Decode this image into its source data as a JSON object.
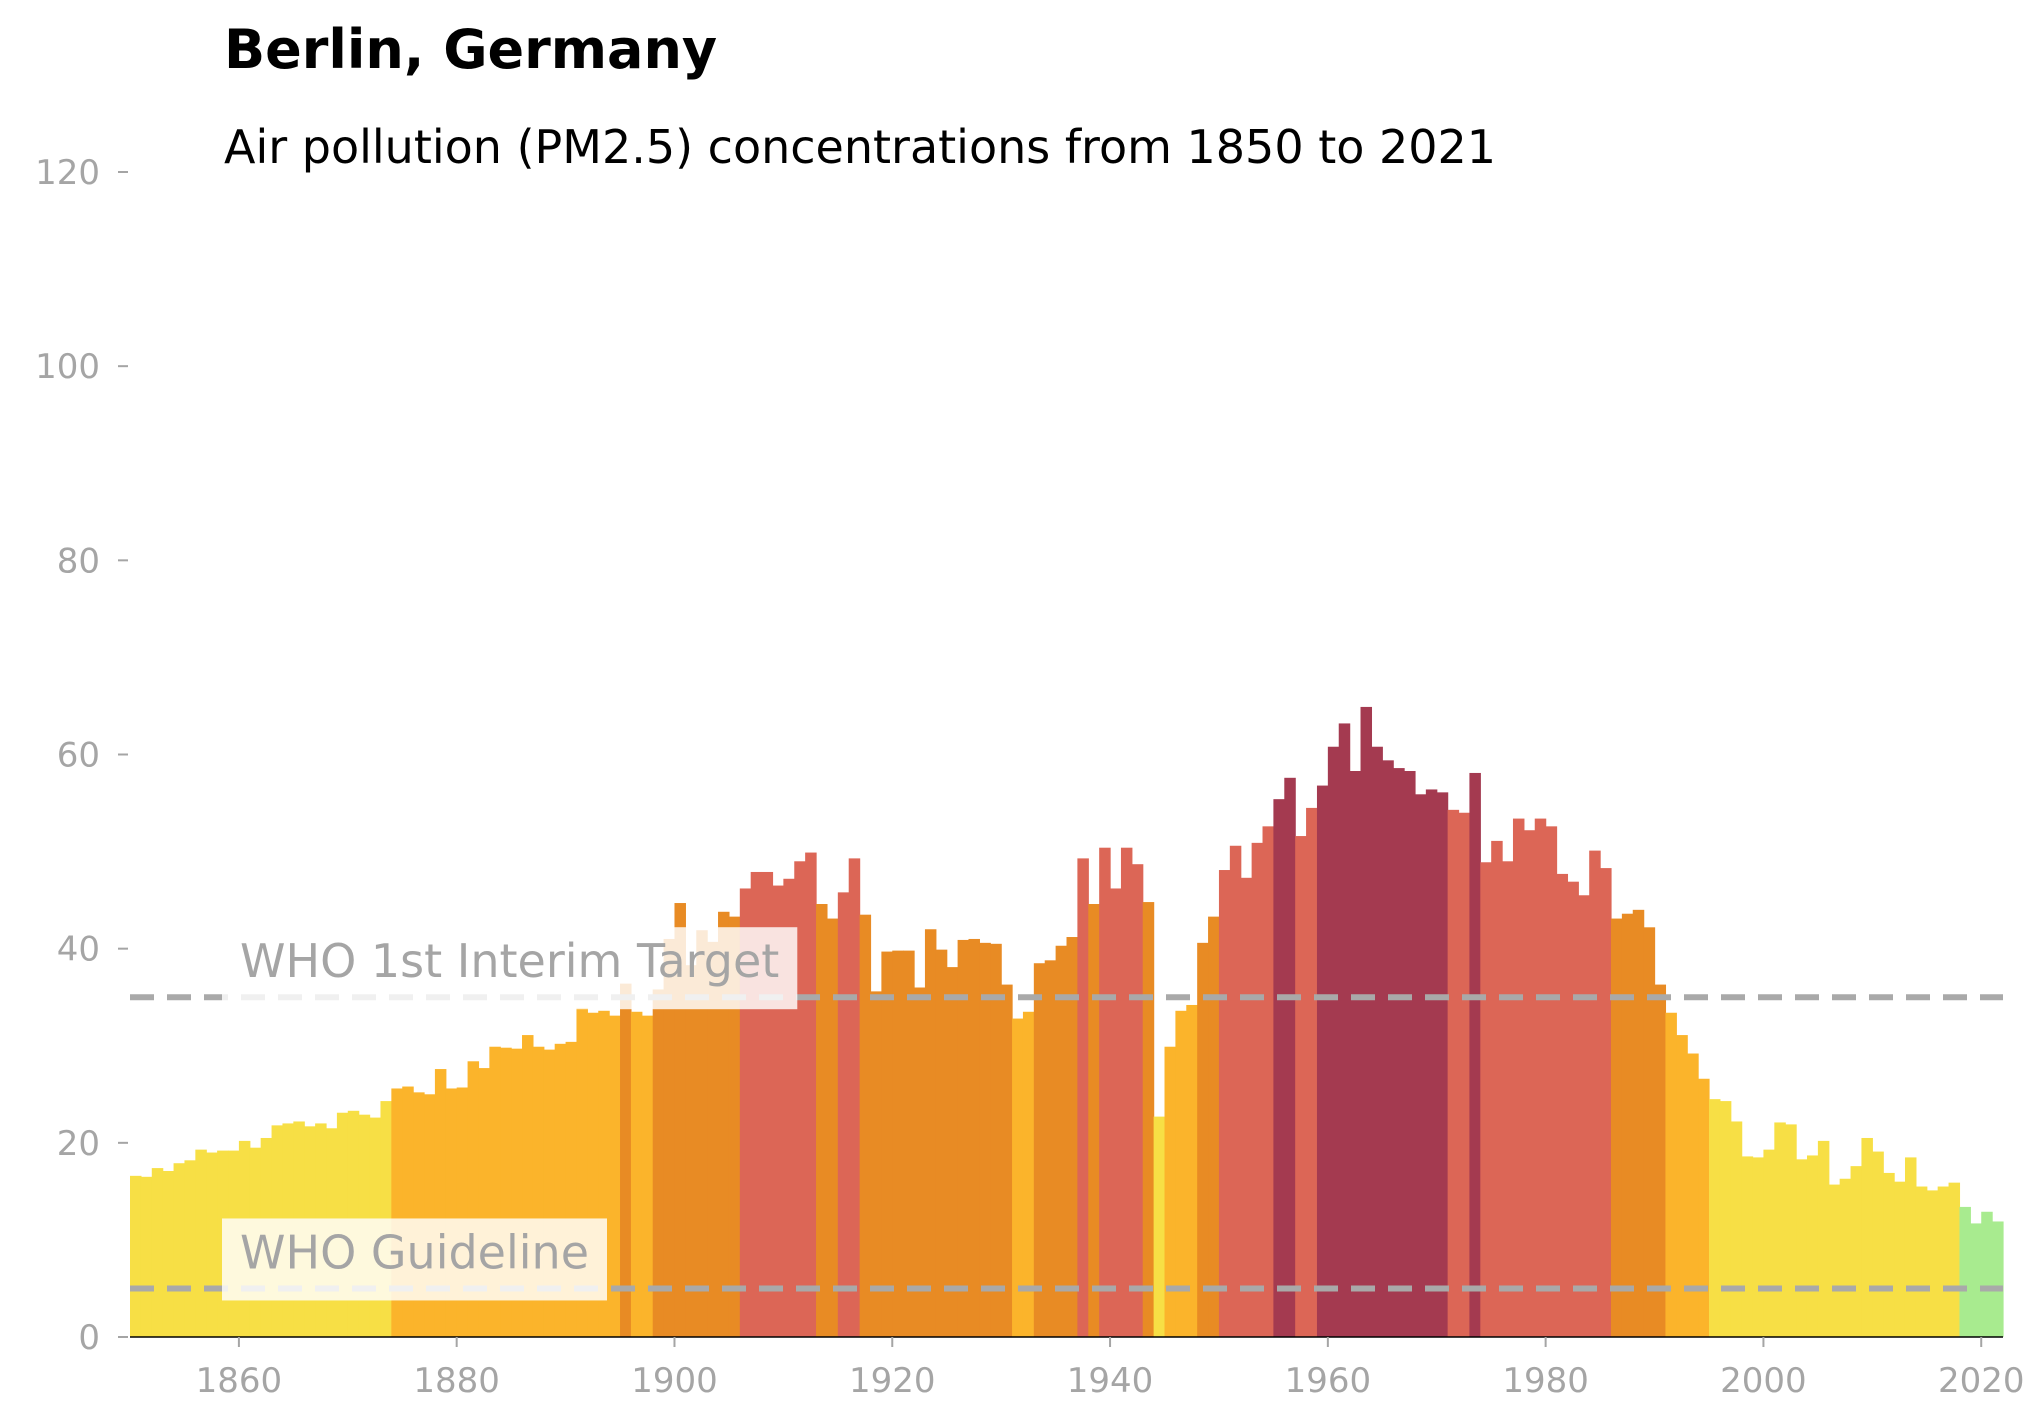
{
  "chart_data": {
    "type": "bar",
    "title": "Berlin, Germany",
    "subtitle": "Air pollution (PM2.5) concentrations from 1850 to 2021",
    "xlabel": "",
    "ylabel": "",
    "xlim": [
      1850,
      2022
    ],
    "ylim": [
      0,
      120
    ],
    "y_ticks": [
      0,
      20,
      40,
      60,
      80,
      100,
      120
    ],
    "x_ticks": [
      1860,
      1880,
      1900,
      1920,
      1940,
      1960,
      1980,
      2000,
      2020
    ],
    "grid": false,
    "legend": "none",
    "x": [
      1850,
      1851,
      1852,
      1853,
      1854,
      1855,
      1856,
      1857,
      1858,
      1859,
      1860,
      1861,
      1862,
      1863,
      1864,
      1865,
      1866,
      1867,
      1868,
      1869,
      1870,
      1871,
      1872,
      1873,
      1874,
      1875,
      1876,
      1877,
      1878,
      1879,
      1880,
      1881,
      1882,
      1883,
      1884,
      1885,
      1886,
      1887,
      1888,
      1889,
      1890,
      1891,
      1892,
      1893,
      1894,
      1895,
      1896,
      1897,
      1898,
      1899,
      1900,
      1901,
      1902,
      1903,
      1904,
      1905,
      1906,
      1907,
      1908,
      1909,
      1910,
      1911,
      1912,
      1913,
      1914,
      1915,
      1916,
      1917,
      1918,
      1919,
      1920,
      1921,
      1922,
      1923,
      1924,
      1925,
      1926,
      1927,
      1928,
      1929,
      1930,
      1931,
      1932,
      1933,
      1934,
      1935,
      1936,
      1937,
      1938,
      1939,
      1940,
      1941,
      1942,
      1943,
      1944,
      1945,
      1946,
      1947,
      1948,
      1949,
      1950,
      1951,
      1952,
      1953,
      1954,
      1955,
      1956,
      1957,
      1958,
      1959,
      1960,
      1961,
      1962,
      1963,
      1964,
      1965,
      1966,
      1967,
      1968,
      1969,
      1970,
      1971,
      1972,
      1973,
      1974,
      1975,
      1976,
      1977,
      1978,
      1979,
      1980,
      1981,
      1982,
      1983,
      1984,
      1985,
      1986,
      1987,
      1988,
      1989,
      1990,
      1991,
      1992,
      1993,
      1994,
      1995,
      1996,
      1997,
      1998,
      1999,
      2000,
      2001,
      2002,
      2003,
      2004,
      2005,
      2006,
      2007,
      2008,
      2009,
      2010,
      2011,
      2012,
      2013,
      2014,
      2015,
      2016,
      2017,
      2018,
      2019,
      2020,
      2021
    ],
    "values": [
      16.6,
      16.5,
      17.4,
      17.1,
      17.9,
      18.2,
      19.3,
      19.0,
      19.2,
      19.2,
      20.2,
      19.5,
      20.5,
      21.8,
      22.0,
      22.2,
      21.7,
      22.0,
      21.5,
      23.1,
      23.3,
      22.9,
      22.6,
      24.3,
      25.6,
      25.8,
      25.2,
      25.0,
      27.6,
      25.6,
      25.7,
      28.4,
      27.7,
      29.9,
      29.8,
      29.7,
      31.1,
      29.9,
      29.6,
      30.2,
      30.4,
      33.9,
      33.4,
      33.6,
      33.1,
      36.4,
      33.5,
      33.1,
      35.8,
      41.0,
      44.7,
      38.3,
      41.9,
      40.7,
      43.8,
      43.3,
      46.2,
      47.9,
      47.9,
      46.5,
      47.2,
      49.0,
      49.9,
      44.6,
      43.1,
      45.8,
      49.3,
      43.5,
      35.6,
      39.7,
      39.8,
      39.8,
      36.0,
      42.0,
      39.9,
      38.1,
      40.9,
      41.0,
      40.6,
      40.5,
      36.3,
      32.8,
      33.5,
      38.5,
      38.8,
      40.3,
      41.2,
      49.3,
      44.6,
      50.4,
      46.2,
      50.4,
      48.7,
      44.8,
      22.7,
      29.9,
      33.6,
      34.2,
      40.6,
      43.3,
      48.1,
      50.6,
      47.3,
      50.9,
      52.6,
      55.4,
      57.6,
      51.6,
      54.5,
      56.8,
      60.8,
      63.2,
      58.3,
      64.9,
      60.8,
      59.4,
      58.6,
      58.3,
      55.9,
      56.4,
      56.1,
      54.3,
      54.0,
      58.1,
      48.9,
      51.1,
      49.0,
      53.4,
      52.2,
      53.4,
      52.6,
      47.7,
      46.9,
      45.5,
      50.1,
      48.3,
      43.1,
      43.6,
      44.0,
      42.2,
      36.3,
      33.4,
      31.1,
      29.2,
      26.6,
      24.5,
      24.3,
      22.2,
      18.6,
      18.5,
      19.3,
      22.1,
      21.9,
      18.3,
      18.7,
      20.2,
      15.7,
      16.3,
      17.6,
      20.5,
      19.1,
      16.9,
      16.0,
      18.5,
      15.5,
      15.1,
      15.5,
      15.9,
      13.4,
      11.7,
      12.9,
      11.9
    ],
    "color_bands": [
      {
        "max": 5,
        "color": "#a8eb8f"
      },
      {
        "max": 15,
        "color": "#a8eb8f"
      },
      {
        "max": 25,
        "color": "#f7df45"
      },
      {
        "max": 35,
        "color": "#fbb42b"
      },
      {
        "max": 45,
        "color": "#e88b24"
      },
      {
        "max": 55,
        "color": "#dc6656"
      },
      {
        "max": 999,
        "color": "#a43a50"
      }
    ],
    "reference_lines": [
      {
        "label": "WHO 1st Interim Target",
        "value": 35,
        "color": "#a9a9a9"
      },
      {
        "label": "WHO Guideline",
        "value": 5,
        "color": "#a9a9a9"
      }
    ]
  }
}
